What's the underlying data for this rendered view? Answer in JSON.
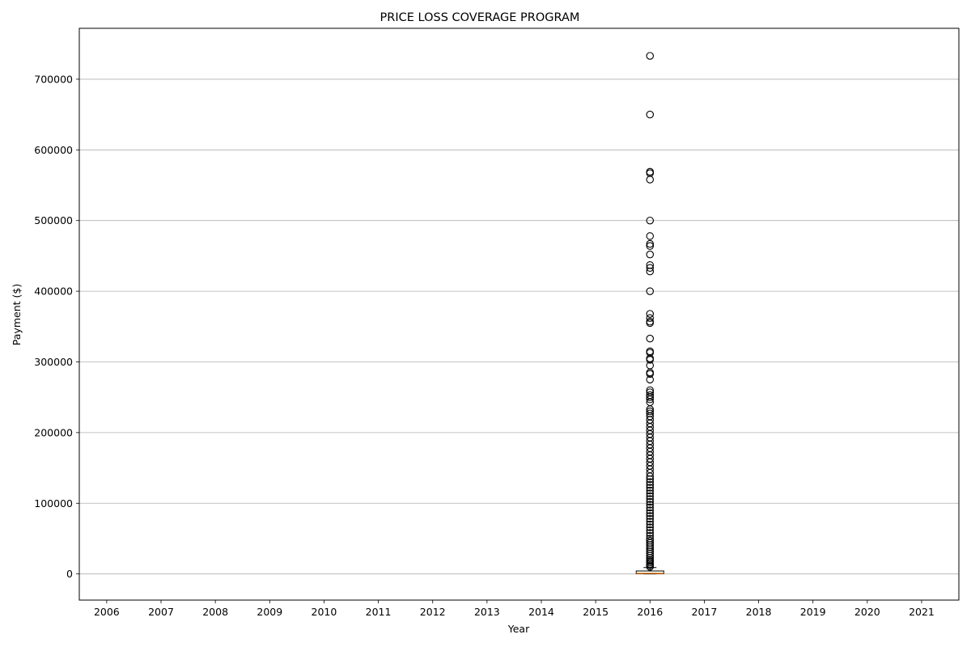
{
  "chart_data": {
    "type": "box",
    "title": "PRICE LOSS COVERAGE PROGRAM",
    "xlabel": "Year",
    "ylabel": "Payment ($)",
    "categories": [
      "2006",
      "2007",
      "2008",
      "2009",
      "2010",
      "2011",
      "2012",
      "2013",
      "2014",
      "2015",
      "2016",
      "2017",
      "2018",
      "2019",
      "2020",
      "2021"
    ],
    "ylim": [
      -37000,
      772000
    ],
    "yticks": [
      0,
      100000,
      200000,
      300000,
      400000,
      500000,
      600000,
      700000
    ],
    "ytick_labels": [
      "0",
      "100000",
      "200000",
      "300000",
      "400000",
      "500000",
      "600000",
      "700000"
    ],
    "grid": "horizontal",
    "boxes": [
      {
        "category": "2016",
        "whisker_low": 0,
        "q1": 300,
        "median": 900,
        "q3": 4200,
        "whisker_high": 9000,
        "outliers": [
          733000,
          650000,
          569000,
          567000,
          558000,
          500000,
          478000,
          467000,
          464000,
          452000,
          437000,
          433000,
          428000,
          400000,
          368000,
          362000,
          357000,
          355000,
          333000,
          315000,
          313000,
          305000,
          303000,
          295000,
          285000,
          283000,
          275000,
          260000,
          257000,
          253000,
          250000,
          247000,
          243000,
          233000,
          230000,
          227000,
          223000,
          218000,
          213000,
          208000,
          203000,
          198000,
          193000,
          188000,
          183000,
          178000,
          173000,
          168000,
          163000,
          158000,
          153000,
          148000,
          143000,
          138000,
          134000,
          130000,
          126000,
          122000,
          118000,
          114000,
          110000,
          106000,
          102000,
          98000,
          94000,
          90000,
          86000,
          82000,
          78000,
          74000,
          70000,
          66000,
          62000,
          58000,
          54000,
          50000,
          47000,
          44000,
          41000,
          38000,
          35000,
          32000,
          29000,
          26000,
          23000,
          20000,
          18000,
          16000,
          14000,
          12000,
          10000
        ]
      }
    ],
    "colors": {
      "box_edge": "#000000",
      "median": "#ff7f0e",
      "grid": "#b0b0b0",
      "outlier_edge": "#000000"
    }
  }
}
